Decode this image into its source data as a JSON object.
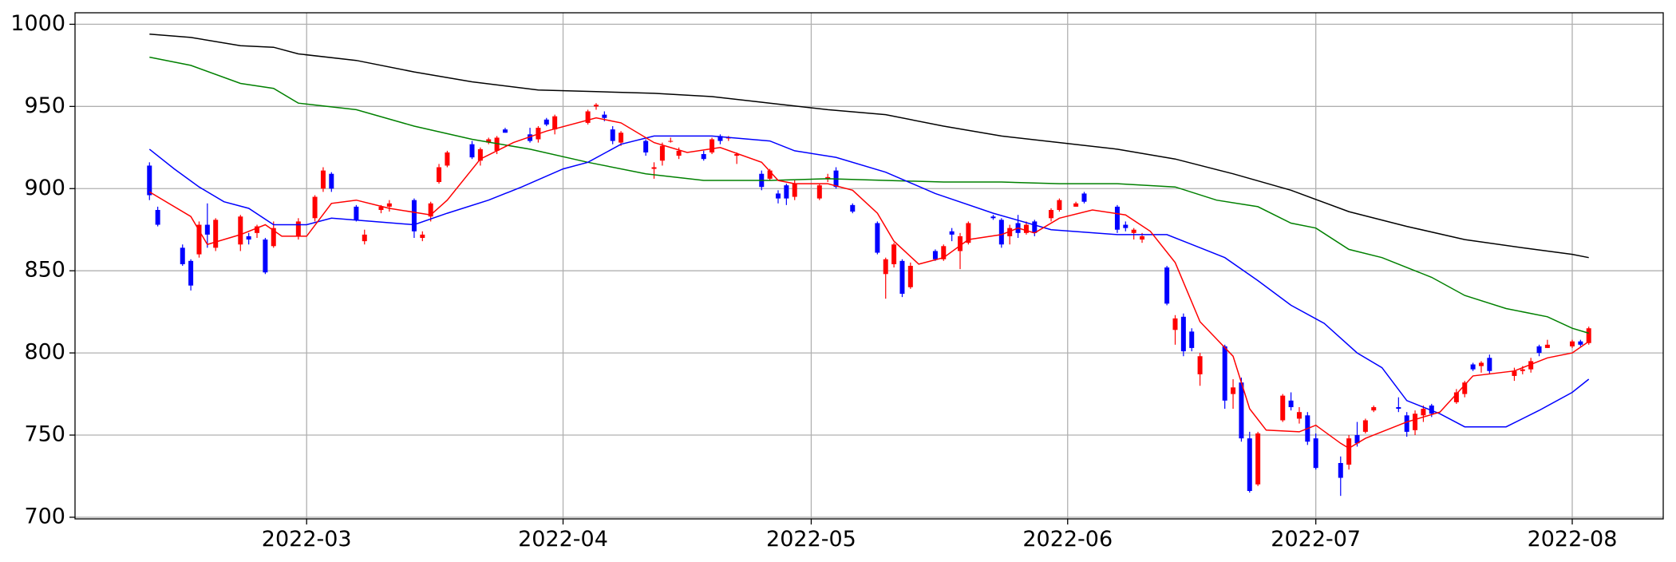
{
  "chart_data": {
    "type": "candlestick",
    "up_color": "#ff0000",
    "down_color": "#0000ff",
    "grid": true,
    "xlim": [
      32,
      224
    ],
    "xticks": [
      {
        "value": 60,
        "label": "2022-03"
      },
      {
        "value": 91,
        "label": "2022-04"
      },
      {
        "value": 121,
        "label": "2022-05"
      },
      {
        "value": 152,
        "label": "2022-06"
      },
      {
        "value": 182,
        "label": "2022-07"
      },
      {
        "value": 213,
        "label": "2022-08"
      }
    ],
    "ylim": [
      699,
      1007
    ],
    "yticks": [
      700,
      750,
      800,
      850,
      900,
      950,
      1000
    ],
    "x": [
      41,
      42,
      45,
      46,
      47,
      48,
      49,
      52,
      53,
      54,
      55,
      56,
      59,
      61,
      62,
      63,
      66,
      67,
      69,
      70,
      73,
      74,
      75,
      76,
      77,
      80,
      81,
      82,
      83,
      84,
      87,
      88,
      89,
      90,
      94,
      95,
      96,
      97,
      98,
      101,
      102,
      103,
      104,
      105,
      108,
      109,
      110,
      111,
      112,
      115,
      116,
      117,
      118,
      119,
      122,
      123,
      124,
      126,
      129,
      130,
      131,
      132,
      133,
      136,
      137,
      138,
      139,
      140,
      143,
      144,
      145,
      146,
      147,
      148,
      150,
      151,
      153,
      154,
      158,
      159,
      160,
      161,
      164,
      165,
      166,
      167,
      168,
      171,
      172,
      173,
      174,
      175,
      178,
      179,
      180,
      181,
      182,
      185,
      186,
      187,
      188,
      189,
      192,
      193,
      194,
      195,
      196,
      199,
      200,
      201,
      202,
      203,
      206,
      207,
      208,
      209,
      210,
      213,
      214,
      215
    ],
    "open": [
      914,
      887,
      864,
      856,
      860,
      878,
      864,
      866,
      871,
      873,
      869,
      865,
      871,
      882,
      900,
      909,
      889,
      868,
      887,
      889,
      893,
      870,
      883,
      904,
      914,
      927,
      917,
      928,
      923,
      936,
      933,
      930,
      942,
      936,
      940,
      950,
      945,
      936,
      928,
      929,
      912,
      917,
      929,
      920,
      921,
      922,
      932,
      931,
      920,
      909,
      906,
      897,
      902,
      895,
      894,
      906,
      911,
      890,
      879,
      848,
      854,
      856,
      840,
      862,
      857,
      874,
      862,
      867,
      883,
      881,
      871,
      879,
      873,
      880,
      882,
      887,
      889,
      897,
      889,
      878,
      873,
      869,
      852,
      814,
      822,
      813,
      787,
      804,
      775,
      782,
      748,
      720,
      759,
      771,
      760,
      762,
      748,
      733,
      732,
      750,
      752,
      765,
      767,
      762,
      753,
      762,
      768,
      770,
      775,
      793,
      792,
      797,
      786,
      789,
      790,
      804,
      803,
      804,
      807,
      806
    ],
    "high": [
      916,
      889,
      866,
      857,
      880,
      891,
      882,
      884,
      873,
      878,
      870,
      880,
      882,
      896,
      913,
      910,
      890,
      875,
      890,
      893,
      894,
      874,
      892,
      915,
      923,
      929,
      925,
      931,
      932,
      937,
      937,
      938,
      943,
      945,
      948,
      952,
      947,
      938,
      935,
      930,
      916,
      928,
      931,
      925,
      923,
      931,
      933,
      932,
      922,
      911,
      912,
      899,
      903,
      905,
      903,
      909,
      913,
      891,
      880,
      858,
      867,
      857,
      855,
      863,
      866,
      876,
      873,
      880,
      884,
      882,
      878,
      884,
      880,
      881,
      888,
      894,
      892,
      898,
      890,
      880,
      876,
      873,
      853,
      823,
      824,
      815,
      800,
      805,
      784,
      785,
      752,
      752,
      775,
      776,
      767,
      764,
      751,
      737,
      750,
      758,
      760,
      768,
      773,
      764,
      765,
      768,
      769,
      778,
      783,
      794,
      795,
      799,
      791,
      792,
      797,
      805,
      808,
      808,
      808,
      816
    ],
    "low": [
      893,
      877,
      853,
      838,
      858,
      864,
      862,
      862,
      866,
      870,
      848,
      864,
      869,
      880,
      898,
      898,
      880,
      866,
      885,
      886,
      870,
      868,
      880,
      903,
      913,
      918,
      914,
      927,
      921,
      934,
      928,
      928,
      938,
      933,
      939,
      948,
      941,
      927,
      926,
      920,
      906,
      914,
      928,
      918,
      917,
      921,
      927,
      929,
      915,
      899,
      905,
      891,
      890,
      893,
      893,
      904,
      900,
      885,
      860,
      833,
      852,
      834,
      839,
      856,
      856,
      868,
      851,
      866,
      881,
      864,
      866,
      870,
      872,
      871,
      880,
      886,
      889,
      891,
      873,
      874,
      869,
      867,
      829,
      805,
      798,
      801,
      780,
      766,
      766,
      746,
      715,
      719,
      758,
      765,
      757,
      744,
      729,
      713,
      729,
      743,
      751,
      764,
      764,
      749,
      750,
      758,
      761,
      769,
      773,
      789,
      788,
      787,
      783,
      787,
      788,
      798,
      803,
      803,
      804,
      805
    ],
    "close": [
      896,
      878,
      854,
      841,
      878,
      872,
      881,
      883,
      869,
      877,
      849,
      876,
      880,
      895,
      911,
      900,
      881,
      872,
      889,
      891,
      874,
      872,
      891,
      913,
      922,
      919,
      924,
      930,
      931,
      934,
      929,
      937,
      939,
      944,
      947,
      951,
      943,
      929,
      934,
      922,
      913,
      926,
      929,
      923,
      918,
      930,
      929,
      931,
      921,
      901,
      911,
      894,
      894,
      903,
      902,
      907,
      901,
      886,
      861,
      857,
      866,
      836,
      853,
      857,
      865,
      872,
      871,
      879,
      882,
      866,
      876,
      873,
      878,
      873,
      887,
      893,
      891,
      892,
      875,
      876,
      875,
      871,
      830,
      821,
      801,
      803,
      798,
      771,
      779,
      748,
      716,
      751,
      774,
      767,
      764,
      746,
      730,
      724,
      748,
      745,
      759,
      767,
      766,
      752,
      763,
      766,
      763,
      776,
      782,
      790,
      794,
      789,
      789,
      790,
      795,
      800,
      805,
      807,
      805,
      815
    ],
    "series": [
      {
        "color": "#000000",
        "x": [
          41,
          46,
          52,
          56,
          59,
          66,
          73,
          80,
          88,
          95,
          102,
          109,
          116,
          123,
          130,
          137,
          144,
          151,
          158,
          165,
          172,
          179,
          186,
          193,
          200,
          207,
          213,
          215
        ],
        "values": [
          994,
          992,
          987,
          986,
          982,
          978,
          971,
          965,
          960,
          959,
          958,
          956,
          952,
          948,
          945,
          938,
          932,
          928,
          924,
          918,
          909,
          899,
          886,
          877,
          869,
          864,
          860,
          858
        ]
      },
      {
        "color": "#008000",
        "x": [
          41,
          46,
          52,
          56,
          59,
          66,
          73,
          80,
          87,
          94,
          101,
          108,
          116,
          123,
          130,
          137,
          144,
          151,
          158,
          165,
          170,
          175,
          179,
          182,
          186,
          190,
          196,
          200,
          205,
          210,
          213,
          215
        ],
        "values": [
          980,
          975,
          964,
          961,
          952,
          948,
          938,
          930,
          924,
          916,
          909,
          905,
          905,
          906,
          905,
          904,
          904,
          903,
          903,
          901,
          893,
          889,
          879,
          876,
          863,
          858,
          846,
          835,
          827,
          822,
          815,
          812
        ]
      },
      {
        "color": "#0000ff",
        "x": [
          41,
          44,
          47,
          50,
          53,
          56,
          60,
          63,
          68,
          73,
          77,
          82,
          86,
          91,
          94,
          98,
          102,
          109,
          116,
          119,
          124,
          130,
          136,
          143,
          150,
          158,
          164,
          167,
          171,
          175,
          179,
          183,
          187,
          190,
          193,
          197,
          200,
          205,
          209,
          213,
          215
        ],
        "values": [
          924,
          912,
          901,
          892,
          888,
          878,
          878,
          882,
          880,
          878,
          885,
          893,
          901,
          912,
          916,
          927,
          932,
          932,
          929,
          923,
          919,
          910,
          897,
          885,
          875,
          872,
          872,
          866,
          858,
          844,
          829,
          818,
          800,
          791,
          771,
          763,
          755,
          755,
          765,
          776,
          784
        ]
      },
      {
        "color": "#ff0000",
        "x": [
          41,
          46,
          48,
          52,
          55,
          57,
          60,
          63,
          66,
          70,
          75,
          77,
          81,
          85,
          89,
          95,
          98,
          102,
          106,
          110,
          115,
          117,
          119,
          123,
          126,
          129,
          131,
          134,
          137,
          140,
          144,
          146,
          148,
          151,
          155,
          159,
          162,
          165,
          168,
          172,
          174,
          176,
          180,
          182,
          185,
          186,
          188,
          193,
          197,
          201,
          206,
          210,
          213,
          215
        ],
        "values": [
          898,
          883,
          866,
          872,
          878,
          871,
          871,
          891,
          893,
          888,
          884,
          893,
          918,
          928,
          935,
          943,
          940,
          928,
          922,
          925,
          916,
          905,
          903,
          903,
          899,
          885,
          868,
          854,
          858,
          869,
          872,
          876,
          873,
          882,
          887,
          884,
          874,
          855,
          819,
          798,
          766,
          753,
          752,
          756,
          745,
          742,
          748,
          758,
          764,
          786,
          789,
          797,
          800,
          807
        ]
      }
    ]
  }
}
